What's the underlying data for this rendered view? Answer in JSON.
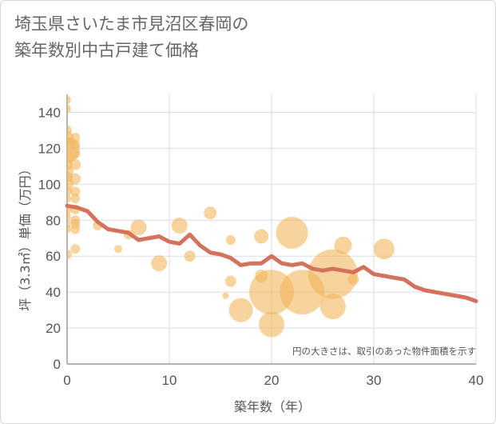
{
  "chart_data": {
    "type": "scatter",
    "title_lines": [
      "埼玉県さいたま市見沼区春岡の",
      "築年数別中古戸建て価格"
    ],
    "xlabel": "築年数（年）",
    "ylabel": "坪（3.3㎡）単価（万円）",
    "note": "円の大きさは、取引のあった物件面積を示す",
    "xlim": [
      0,
      40
    ],
    "ylim": [
      0,
      150
    ],
    "xticks": [
      0,
      10,
      20,
      30,
      40
    ],
    "yticks": [
      0,
      20,
      40,
      60,
      80,
      100,
      120,
      140
    ],
    "grid": true,
    "colors": {
      "bubble": "#f2b65e",
      "line": "#d4725e",
      "grid": "#d9dde3",
      "text": "#555555"
    },
    "points": [
      {
        "x": 0,
        "y": 147,
        "size": 5
      },
      {
        "x": 0,
        "y": 142,
        "size": 5
      },
      {
        "x": 0,
        "y": 130,
        "size": 6
      },
      {
        "x": 0,
        "y": 126,
        "size": 8
      },
      {
        "x": 0,
        "y": 122,
        "size": 10
      },
      {
        "x": 0,
        "y": 119,
        "size": 16
      },
      {
        "x": 0,
        "y": 115,
        "size": 8
      },
      {
        "x": 0,
        "y": 111,
        "size": 7
      },
      {
        "x": 0,
        "y": 107,
        "size": 8
      },
      {
        "x": 0,
        "y": 104,
        "size": 7
      },
      {
        "x": 0,
        "y": 100,
        "size": 8
      },
      {
        "x": 0,
        "y": 96,
        "size": 6
      },
      {
        "x": 0,
        "y": 92,
        "size": 5
      },
      {
        "x": 0,
        "y": 86,
        "size": 6
      },
      {
        "x": 0,
        "y": 82,
        "size": 5
      },
      {
        "x": 0,
        "y": 78,
        "size": 5
      },
      {
        "x": 0,
        "y": 75,
        "size": 5
      },
      {
        "x": 0,
        "y": 61,
        "size": 6
      },
      {
        "x": 0.8,
        "y": 126,
        "size": 6
      },
      {
        "x": 0.8,
        "y": 122,
        "size": 6
      },
      {
        "x": 0.8,
        "y": 117,
        "size": 6
      },
      {
        "x": 0.8,
        "y": 111,
        "size": 7
      },
      {
        "x": 0.8,
        "y": 103,
        "size": 7
      },
      {
        "x": 0.8,
        "y": 96,
        "size": 6
      },
      {
        "x": 0.8,
        "y": 92,
        "size": 6
      },
      {
        "x": 0.8,
        "y": 86,
        "size": 6
      },
      {
        "x": 0.8,
        "y": 80,
        "size": 6
      },
      {
        "x": 0.8,
        "y": 78,
        "size": 6
      },
      {
        "x": 0.8,
        "y": 75,
        "size": 6
      },
      {
        "x": 0.8,
        "y": 64,
        "size": 6
      },
      {
        "x": 3,
        "y": 77,
        "size": 6
      },
      {
        "x": 5,
        "y": 64,
        "size": 5
      },
      {
        "x": 6,
        "y": 72,
        "size": 6
      },
      {
        "x": 7,
        "y": 76,
        "size": 10
      },
      {
        "x": 9,
        "y": 56,
        "size": 10
      },
      {
        "x": 11,
        "y": 77,
        "size": 10
      },
      {
        "x": 12,
        "y": 60,
        "size": 7
      },
      {
        "x": 14,
        "y": 84,
        "size": 8
      },
      {
        "x": 15.5,
        "y": 38,
        "size": 4
      },
      {
        "x": 16,
        "y": 69,
        "size": 6
      },
      {
        "x": 16,
        "y": 46,
        "size": 7
      },
      {
        "x": 17,
        "y": 30,
        "size": 15
      },
      {
        "x": 19,
        "y": 71,
        "size": 9
      },
      {
        "x": 19,
        "y": 49,
        "size": 8
      },
      {
        "x": 20,
        "y": 40,
        "size": 28
      },
      {
        "x": 20,
        "y": 22,
        "size": 16
      },
      {
        "x": 22,
        "y": 73,
        "size": 20
      },
      {
        "x": 23,
        "y": 40,
        "size": 28
      },
      {
        "x": 26,
        "y": 32,
        "size": 16
      },
      {
        "x": 26,
        "y": 50,
        "size": 31
      },
      {
        "x": 27,
        "y": 66,
        "size": 11
      },
      {
        "x": 28,
        "y": 47,
        "size": 7
      },
      {
        "x": 31,
        "y": 64,
        "size": 13
      }
    ],
    "trend": {
      "x": [
        0,
        1,
        2,
        3,
        4,
        5,
        6,
        7,
        8,
        9,
        10,
        11,
        12,
        13,
        14,
        15,
        16,
        17,
        18,
        19,
        20,
        21,
        22,
        23,
        24,
        25,
        26,
        27,
        28,
        29,
        30,
        31,
        32,
        33,
        34,
        35,
        36,
        37,
        38,
        39,
        40
      ],
      "y": [
        88,
        87,
        85,
        79,
        75,
        74,
        73,
        69,
        70,
        71,
        68,
        67,
        72,
        66,
        62,
        61,
        59,
        55,
        56,
        56,
        60,
        56,
        55,
        56,
        53,
        52,
        53,
        52,
        51,
        54,
        50,
        49,
        48,
        47,
        43,
        41,
        40,
        39,
        38,
        37,
        35
      ]
    }
  }
}
